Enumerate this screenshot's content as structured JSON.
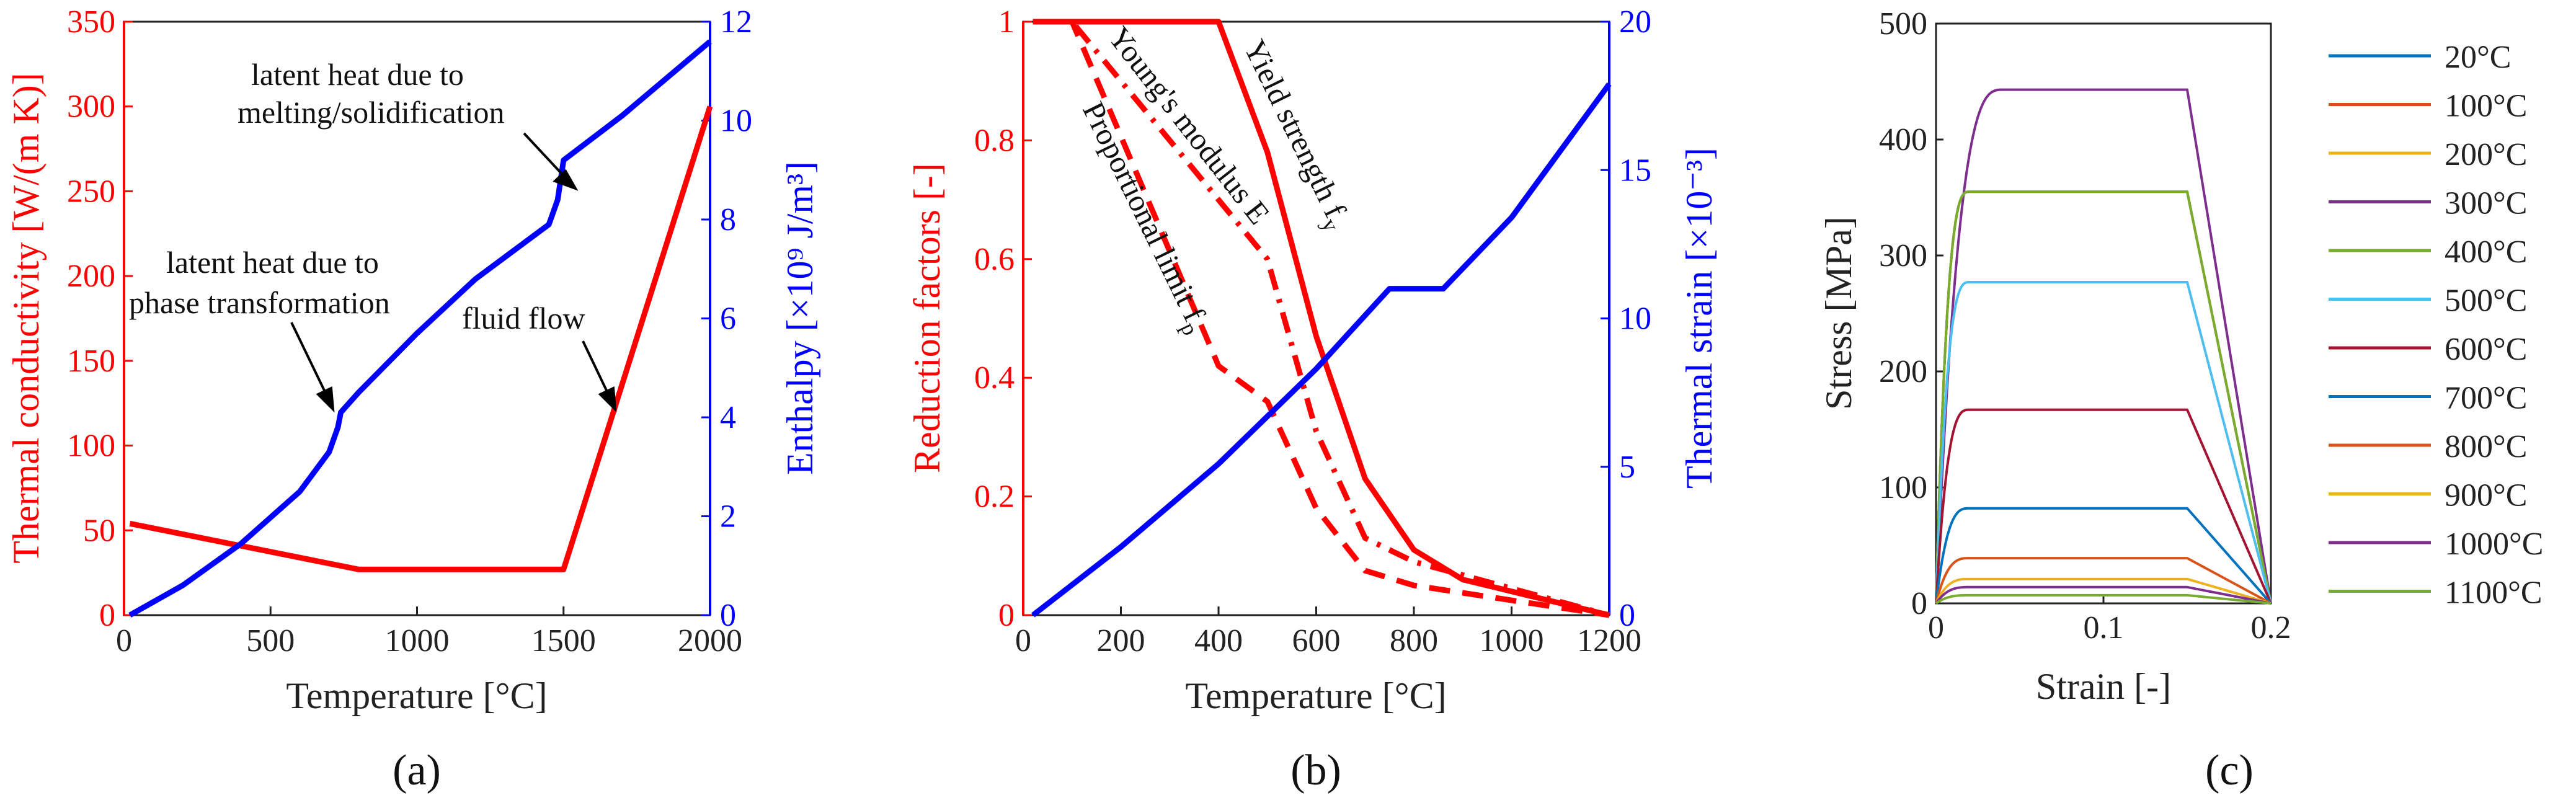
{
  "chart_data": [
    {
      "id": "a",
      "type": "line",
      "panel_label": "(a)",
      "xlabel": "Temperature [°C]",
      "ylabel_left": "Thermal conductivity [W/(m K)]",
      "ylabel_right": "Enthalpy [×10⁹ J/m³]",
      "xlim": [
        0,
        2000
      ],
      "ylim_left": [
        0,
        350
      ],
      "ylim_right": [
        0,
        12
      ],
      "xticks": [
        "0",
        "500",
        "1000",
        "1500",
        "2000"
      ],
      "yticks_left": [
        "0",
        "50",
        "100",
        "150",
        "200",
        "250",
        "300",
        "350"
      ],
      "yticks_right": [
        "0",
        "2",
        "4",
        "6",
        "8",
        "10",
        "12"
      ],
      "series": [
        {
          "name": "Thermal conductivity",
          "axis": "left",
          "color": "#ff0000",
          "x": [
            20,
            800,
            1500,
            2000
          ],
          "y": [
            54,
            27,
            27,
            300
          ]
        },
        {
          "name": "Enthalpy",
          "axis": "right",
          "color": "#0000ff",
          "x": [
            20,
            200,
            400,
            600,
            700,
            730,
            740,
            800,
            1000,
            1200,
            1450,
            1480,
            1500,
            1700,
            2000
          ],
          "y": [
            0,
            0.6,
            1.45,
            2.5,
            3.3,
            3.8,
            4.1,
            4.5,
            5.7,
            6.8,
            7.9,
            8.4,
            9.2,
            10.1,
            11.6
          ]
        }
      ],
      "annotations": {
        "melting_line1": "latent heat due to",
        "melting_line2": "melting/solidification",
        "phase_line1": "latent heat due to",
        "phase_line2": "phase transformation",
        "fluid": "fluid flow"
      }
    },
    {
      "id": "b",
      "type": "line",
      "panel_label": "(b)",
      "xlabel": "Temperature [°C]",
      "ylabel_left": "Reduction factors [-]",
      "ylabel_right": "Thermal strain [×10⁻³]",
      "xlim": [
        0,
        1200
      ],
      "ylim_left": [
        0,
        1
      ],
      "ylim_right": [
        0,
        20
      ],
      "xticks": [
        "0",
        "200",
        "400",
        "600",
        "800",
        "1000",
        "1200"
      ],
      "yticks_left": [
        "0",
        "0.2",
        "0.4",
        "0.6",
        "0.8",
        "1"
      ],
      "yticks_right": [
        "0",
        "5",
        "10",
        "15",
        "20"
      ],
      "series": [
        {
          "name": "Yield strength f_y",
          "axis": "left",
          "color": "#ff0000",
          "dash": "solid",
          "x": [
            20,
            400,
            500,
            600,
            700,
            800,
            900,
            1000,
            1100,
            1200
          ],
          "y": [
            1.0,
            1.0,
            0.78,
            0.47,
            0.23,
            0.11,
            0.06,
            0.04,
            0.02,
            0.0
          ]
        },
        {
          "name": "Young's modulus E",
          "axis": "left",
          "color": "#ff0000",
          "dash": "dashdot",
          "x": [
            20,
            100,
            200,
            300,
            400,
            500,
            600,
            700,
            800,
            900,
            1000,
            1100,
            1200
          ],
          "y": [
            1.0,
            1.0,
            0.9,
            0.8,
            0.7,
            0.6,
            0.31,
            0.13,
            0.09,
            0.0675,
            0.045,
            0.0225,
            0.0
          ]
        },
        {
          "name": "Proportional limit f_p",
          "axis": "left",
          "color": "#ff0000",
          "dash": "dashed",
          "x": [
            20,
            100,
            200,
            300,
            400,
            500,
            600,
            700,
            800,
            900,
            1000,
            1100,
            1200
          ],
          "y": [
            1.0,
            1.0,
            0.807,
            0.613,
            0.42,
            0.36,
            0.18,
            0.075,
            0.05,
            0.0375,
            0.025,
            0.0125,
            0.0
          ]
        },
        {
          "name": "Thermal strain",
          "axis": "right",
          "color": "#0000ff",
          "dash": "solid",
          "x": [
            20,
            200,
            400,
            600,
            750,
            860,
            1000,
            1200
          ],
          "y": [
            0,
            2.3,
            5.1,
            8.3,
            11.0,
            11.0,
            13.4,
            17.9
          ]
        }
      ],
      "annotations": {
        "yield": "Yield strength  f",
        "yield_sub": "y",
        "young": "Young's modulus  E",
        "prop": "Proportional limit  f",
        "prop_sub": "p"
      }
    },
    {
      "id": "c",
      "type": "line",
      "panel_label": "(c)",
      "xlabel": "Strain [-]",
      "ylabel": "Stress [MPa]",
      "xlim": [
        0,
        0.2
      ],
      "ylim": [
        0,
        500
      ],
      "xticks": [
        "0",
        "0.1",
        "0.2"
      ],
      "yticks": [
        "0",
        "100",
        "200",
        "300",
        "400",
        "500"
      ],
      "series": [
        {
          "name": "20°C",
          "color": "#0072bd",
          "plateau": 355,
          "yield_strain": 0.02
        },
        {
          "name": "100°C",
          "color": "#d95319",
          "plateau": 355,
          "yield_strain": 0.02
        },
        {
          "name": "200°C",
          "color": "#edb120",
          "plateau": 355,
          "yield_strain": 0.02
        },
        {
          "name": "300°C",
          "color": "#7e2f8e",
          "plateau": 443,
          "yield_strain": 0.04
        },
        {
          "name": "400°C",
          "color": "#77ac30",
          "plateau": 355,
          "yield_strain": 0.02
        },
        {
          "name": "500°C",
          "color": "#4dbeee",
          "plateau": 277,
          "yield_strain": 0.02
        },
        {
          "name": "600°C",
          "color": "#a2142f",
          "plateau": 167,
          "yield_strain": 0.02
        },
        {
          "name": "700°C",
          "color": "#0072bd",
          "plateau": 82,
          "yield_strain": 0.02
        },
        {
          "name": "800°C",
          "color": "#d95319",
          "plateau": 39,
          "yield_strain": 0.02
        },
        {
          "name": "900°C",
          "color": "#edb120",
          "plateau": 21,
          "yield_strain": 0.02
        },
        {
          "name": "1000°C",
          "color": "#7e2f8e",
          "plateau": 14,
          "yield_strain": 0.02
        },
        {
          "name": "1100°C",
          "color": "#77ac30",
          "plateau": 7,
          "yield_strain": 0.02
        }
      ],
      "plateau_end_strain": 0.15,
      "fracture_strain": 0.2,
      "legend_location": "outside-right"
    }
  ]
}
